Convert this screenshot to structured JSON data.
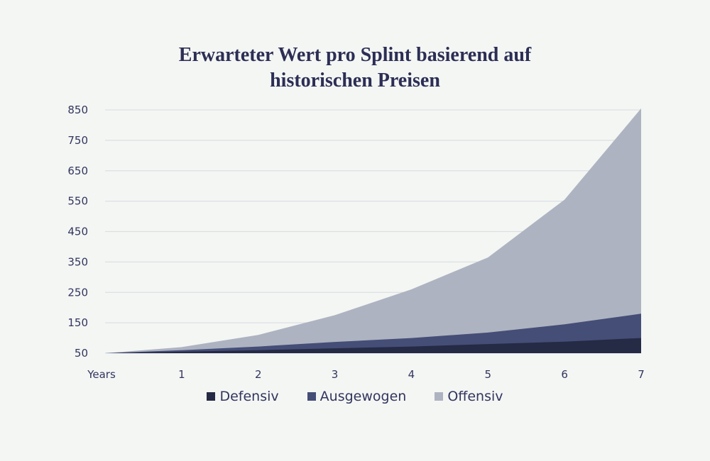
{
  "chart_data": {
    "type": "area",
    "stacked": false,
    "title_lines": [
      "Erwarteter Wert pro Splint basierend auf",
      "historischen Preisen"
    ],
    "x_ticks": [
      "Years",
      "1",
      "2",
      "3",
      "4",
      "5",
      "6",
      "7"
    ],
    "x": [
      0,
      1,
      2,
      3,
      4,
      5,
      6,
      7
    ],
    "y_ticks": [
      "850",
      "750",
      "650",
      "550",
      "450",
      "350",
      "250",
      "150",
      "50"
    ],
    "ylim": [
      50,
      850
    ],
    "grid": true,
    "legend_position": "bottom",
    "series": [
      {
        "name": "Offensiv",
        "color": "#aeb3c1",
        "values": [
          50,
          70,
          110,
          175,
          260,
          365,
          555,
          855
        ]
      },
      {
        "name": "Ausgewogen",
        "color": "#454e77",
        "values": [
          50,
          60,
          72,
          87,
          100,
          118,
          145,
          180
        ]
      },
      {
        "name": "Defensiv",
        "color": "#252a45",
        "values": [
          50,
          55,
          60,
          66,
          72,
          80,
          88,
          100
        ]
      }
    ],
    "legend": [
      {
        "name": "Defensiv",
        "color": "#252a45"
      },
      {
        "name": "Ausgewogen",
        "color": "#454e77"
      },
      {
        "name": "Offensiv",
        "color": "#aeb3c1"
      }
    ]
  }
}
